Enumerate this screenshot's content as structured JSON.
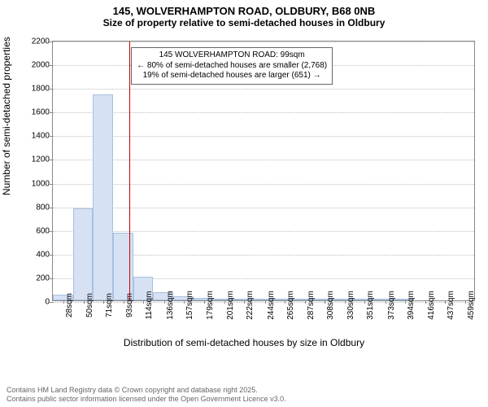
{
  "title": "145, WOLVERHAMPTON ROAD, OLDBURY, B68 0NB",
  "subtitle": "Size of property relative to semi-detached houses in Oldbury",
  "chart": {
    "type": "histogram",
    "ylabel": "Number of semi-detached properties",
    "xlabel": "Distribution of semi-detached houses by size in Oldbury",
    "ylim": [
      0,
      2200
    ],
    "ytick_step": 200,
    "yticks": [
      0,
      200,
      400,
      600,
      800,
      1000,
      1200,
      1400,
      1600,
      1800,
      2000,
      2200
    ],
    "xlim": [
      17,
      470
    ],
    "xticks": [
      28,
      50,
      71,
      93,
      114,
      136,
      157,
      179,
      201,
      222,
      244,
      265,
      287,
      308,
      330,
      351,
      373,
      394,
      416,
      437,
      459
    ],
    "xtick_unit": "sqm",
    "bin_width": 21.5,
    "bins_start": 17,
    "values": [
      50,
      780,
      1740,
      570,
      200,
      70,
      35,
      18,
      12,
      8,
      5,
      3,
      2,
      2,
      1,
      1,
      1,
      1,
      0,
      0,
      0
    ],
    "marker_x": 99,
    "annotation": {
      "line1": "145 WOLVERHAMPTON ROAD: 99sqm",
      "line2": "← 80% of semi-detached houses are smaller (2,768)",
      "line3": "19% of semi-detached houses are larger (651) →",
      "x": 99,
      "y_top": 2150
    },
    "bar_fill": "#d6e2f3",
    "bar_border": "#a9bfde",
    "marker_color": "#cc0000",
    "grid_color": "#bfbfbf",
    "axis_color": "#888888",
    "background_color": "#ffffff",
    "title_fontsize": 13,
    "subtitle_fontsize": 12,
    "label_fontsize": 12,
    "tick_fontsize": 10,
    "annot_fontsize": 10
  },
  "footer": {
    "line1": "Contains HM Land Registry data © Crown copyright and database right 2025.",
    "line2": "Contains public sector information licensed under the Open Government Licence v3.0."
  }
}
